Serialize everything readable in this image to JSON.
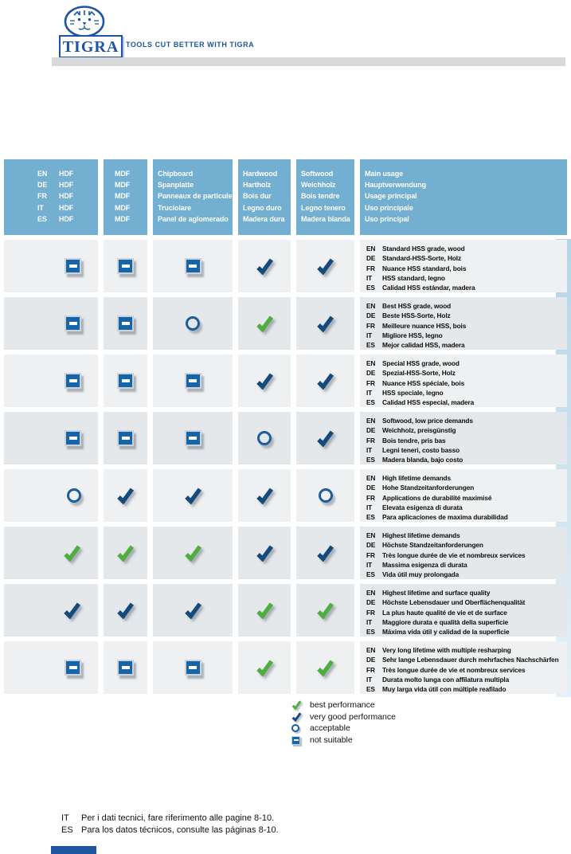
{
  "brand": {
    "name": "TIGRA",
    "tagline": "TOOLS CUT BETTER WITH TIGRA"
  },
  "colors": {
    "brand_blue": "#1d55a0",
    "header_blue": "#72afd0",
    "row_light": "#eef0f1",
    "row_dark": "#e4e8ea",
    "check_green": "#4fae3f",
    "check_navy": "#174a7c",
    "circle_blue": "#1d5d9b",
    "square_blue": "#1565ab"
  },
  "table": {
    "languages": [
      "EN",
      "DE",
      "FR",
      "IT",
      "ES"
    ],
    "columns": [
      {
        "key": "hdf",
        "labels": [
          "HDF",
          "HDF",
          "HDF",
          "HDF",
          "HDF"
        ]
      },
      {
        "key": "mdf",
        "labels": [
          "MDF",
          "MDF",
          "MDF",
          "MDF",
          "MDF"
        ]
      },
      {
        "key": "chipboard",
        "labels": [
          "Chipboard",
          "Spanplatte",
          "Panneaux de particule",
          "Truciolare",
          "Panel de aglomerado"
        ]
      },
      {
        "key": "hardwood",
        "labels": [
          "Hardwood",
          "Hartholz",
          "Bois dur",
          "Legno duro",
          "Madera dura"
        ]
      },
      {
        "key": "softwood",
        "labels": [
          "Softwood",
          "Weichholz",
          "Bois tendre",
          "Legno tenero",
          "Madera blanda"
        ]
      },
      {
        "key": "main-usage",
        "labels": [
          "Main usage",
          "Hauptverwendung",
          "Usage principal",
          "Uso principale",
          "Uso principal"
        ]
      }
    ],
    "rows": [
      {
        "ratings": [
          "not-suitable",
          "not-suitable",
          "not-suitable",
          "very-good",
          "very-good"
        ],
        "usage": [
          "Standard HSS grade, wood",
          "Standard-HSS-Sorte, Holz",
          "Nuance HSS standard, bois",
          "HSS standard, legno",
          "Calidad HSS estándar, madera"
        ]
      },
      {
        "ratings": [
          "not-suitable",
          "not-suitable",
          "acceptable",
          "best",
          "very-good"
        ],
        "usage": [
          "Best HSS grade, wood",
          "Beste HSS-Sorte, Holz",
          "Meilleure nuance HSS, bois",
          "Migliore HSS, legno",
          "Mejor calidad HSS, madera"
        ]
      },
      {
        "ratings": [
          "not-suitable",
          "not-suitable",
          "not-suitable",
          "very-good",
          "very-good"
        ],
        "usage": [
          "Special HSS grade, wood",
          "Spezial-HSS-Sorte, Holz",
          "Nuance HSS spéciale, bois",
          "HSS speciale, legno",
          "Calidad HSS especial, madera"
        ]
      },
      {
        "ratings": [
          "not-suitable",
          "not-suitable",
          "not-suitable",
          "acceptable",
          "very-good"
        ],
        "usage": [
          "Softwood, low price demands",
          "Weichholz, preisgünstig",
          "Bois tendre, pris bas",
          "Legni teneri, costo basso",
          "Madera blanda, bajo costo"
        ]
      },
      {
        "ratings": [
          "acceptable",
          "very-good",
          "very-good",
          "very-good",
          "acceptable"
        ],
        "usage": [
          "High lifetime demands",
          "Hohe Standzeitanforderungen",
          "Applications de durabilité maximisé",
          "Elevata esigenza di durata",
          "Para aplicaciones de maxima durabilidad"
        ]
      },
      {
        "ratings": [
          "best",
          "best",
          "best",
          "very-good",
          "very-good"
        ],
        "usage": [
          "Highest lifetime demands",
          "Höchste Standzeitanforderungen",
          "Très longue durée de vie et nombreux services",
          "Massima esigenza di durata",
          "Vida útil muy prolongada"
        ]
      },
      {
        "ratings": [
          "very-good",
          "very-good",
          "very-good",
          "best",
          "best"
        ],
        "usage": [
          "Highest lifetime and surface quality",
          "Höchste Lebensdauer und Oberflächenqualität",
          "La plus haute qualité de vie et de surface",
          "Maggiore durata e qualità della superficie",
          "Máxima vida útil y calidad de la superficie"
        ]
      },
      {
        "ratings": [
          "not-suitable",
          "not-suitable",
          "not-suitable",
          "best",
          "best"
        ],
        "usage": [
          "Very long lifetime with multiple resharping",
          "Sehr lange Lebensdauer durch mehrfaches Nachschärfen",
          "Très longue durée de vie et nombreux services",
          "Durata molto lunga con affilatura multipla",
          "Muy larga vida útil con múltiple reafilado"
        ]
      }
    ]
  },
  "legend": [
    {
      "rating": "best",
      "label": "best performance"
    },
    {
      "rating": "very-good",
      "label": "very good performance"
    },
    {
      "rating": "acceptable",
      "label": "acceptable"
    },
    {
      "rating": "not-suitable",
      "label": "not suitable"
    }
  ],
  "footer": [
    {
      "lang": "IT",
      "text": "Per i dati tecnici, fare riferimento alle pagine 8-10."
    },
    {
      "lang": "ES",
      "text": "Para los datos técnicos, consulte las páginas 8-10."
    }
  ]
}
